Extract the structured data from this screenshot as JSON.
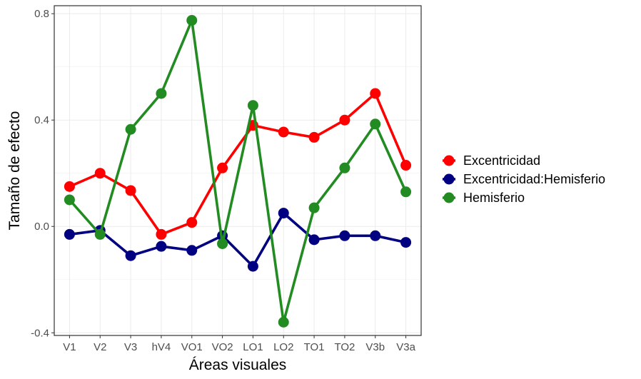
{
  "chart_data": {
    "type": "line",
    "xlabel": "Áreas visuales",
    "ylabel": "Tamaño de efecto",
    "categories": [
      "V1",
      "V2",
      "V3",
      "hV4",
      "VO1",
      "VO2",
      "LO1",
      "LO2",
      "TO1",
      "TO2",
      "V3b",
      "V3a"
    ],
    "ylim": [
      -0.41,
      0.83
    ],
    "yticks": [
      -0.4,
      0.0,
      0.4,
      0.8
    ],
    "ytick_labels": [
      "-0.4",
      "0.0",
      "0.4",
      "0.8"
    ],
    "grid": true,
    "legend_position": "right",
    "series": [
      {
        "name": "Excentricidad",
        "color": "#ff0000",
        "values": [
          0.15,
          0.2,
          0.135,
          -0.03,
          0.015,
          0.22,
          0.38,
          0.355,
          0.335,
          0.4,
          0.5,
          0.23
        ]
      },
      {
        "name": "Excentricidad:Hemisferio",
        "color": "#000080",
        "values": [
          -0.03,
          -0.015,
          -0.11,
          -0.075,
          -0.09,
          -0.035,
          -0.15,
          0.05,
          -0.05,
          -0.035,
          -0.035,
          -0.06
        ]
      },
      {
        "name": "Hemisferio",
        "color": "#228b22",
        "values": [
          0.1,
          -0.03,
          0.365,
          0.5,
          0.775,
          -0.065,
          0.455,
          -0.36,
          0.07,
          0.22,
          0.385,
          0.13
        ]
      }
    ]
  }
}
